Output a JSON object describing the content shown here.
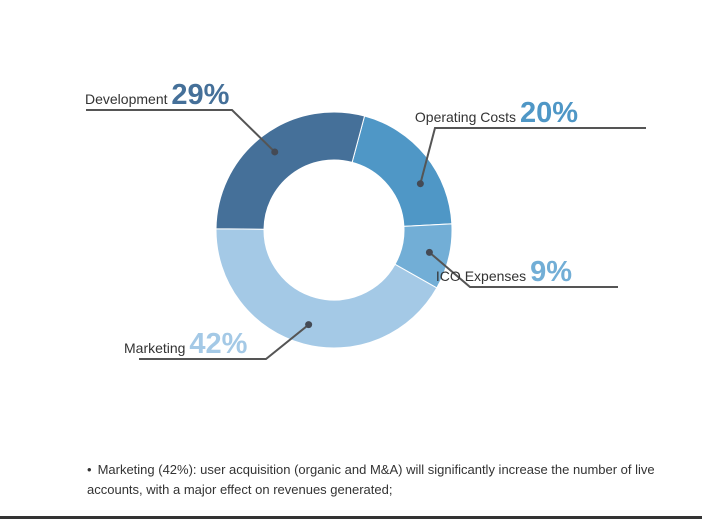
{
  "chart_data": {
    "type": "pie",
    "donut": true,
    "slices": [
      {
        "label": "Operating Costs",
        "value": 20,
        "display": "20%",
        "color": "#4f97c6"
      },
      {
        "label": "ICO Expenses",
        "value": 9,
        "display": "9%",
        "color": "#72aed6"
      },
      {
        "label": "Marketing",
        "value": 42,
        "display": "42%",
        "color": "#a4c9e6"
      },
      {
        "label": "Development",
        "value": 29,
        "display": "29%",
        "color": "#457099"
      }
    ],
    "leader_color": "#555555"
  },
  "note": {
    "bullet": "•",
    "text": "Marketing (42%): user acquisition (organic and M&A) will significantly increase the number of live accounts, with a major effect on revenues generated;"
  }
}
